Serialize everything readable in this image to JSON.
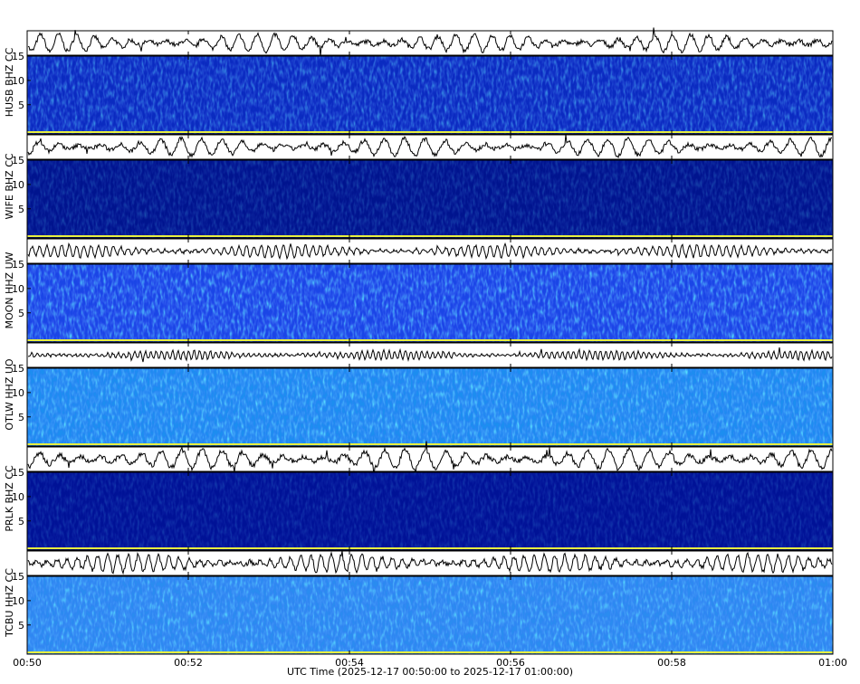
{
  "chart_data": {
    "type": "spectrogram",
    "xlabel": "UTC Time (2025-12-17 00:50:00 to 2025-12-17 01:00:00)",
    "xlim": [
      0,
      10
    ],
    "xticks": [
      {
        "value": 0,
        "label": "00:50"
      },
      {
        "value": 2,
        "label": "00:52"
      },
      {
        "value": 4,
        "label": "00:54"
      },
      {
        "value": 6,
        "label": "00:56"
      },
      {
        "value": 8,
        "label": "00:58"
      },
      {
        "value": 10,
        "label": "01:00"
      }
    ],
    "panels": [
      {
        "label": "HUSB BHZ CC",
        "ylim": [
          -1,
          15
        ],
        "yticks": [
          5,
          10,
          15
        ]
      },
      {
        "label": "WIFE BHZ CC",
        "ylim": [
          -1,
          15
        ],
        "yticks": [
          5,
          10,
          15
        ]
      },
      {
        "label": "MOON HHZ UW",
        "ylim": [
          -1,
          15
        ],
        "yticks": [
          5,
          10,
          15
        ]
      },
      {
        "label": "OTLW HHZ UO",
        "ylim": [
          -1,
          15
        ],
        "yticks": [
          5,
          10,
          15
        ]
      },
      {
        "label": "PRLK BHZ CC",
        "ylim": [
          -1,
          15
        ],
        "yticks": [
          5,
          10,
          15
        ]
      },
      {
        "label": "TCBU HHZ CC",
        "ylim": [
          -1,
          15
        ],
        "yticks": [
          5,
          10,
          15
        ]
      }
    ]
  }
}
